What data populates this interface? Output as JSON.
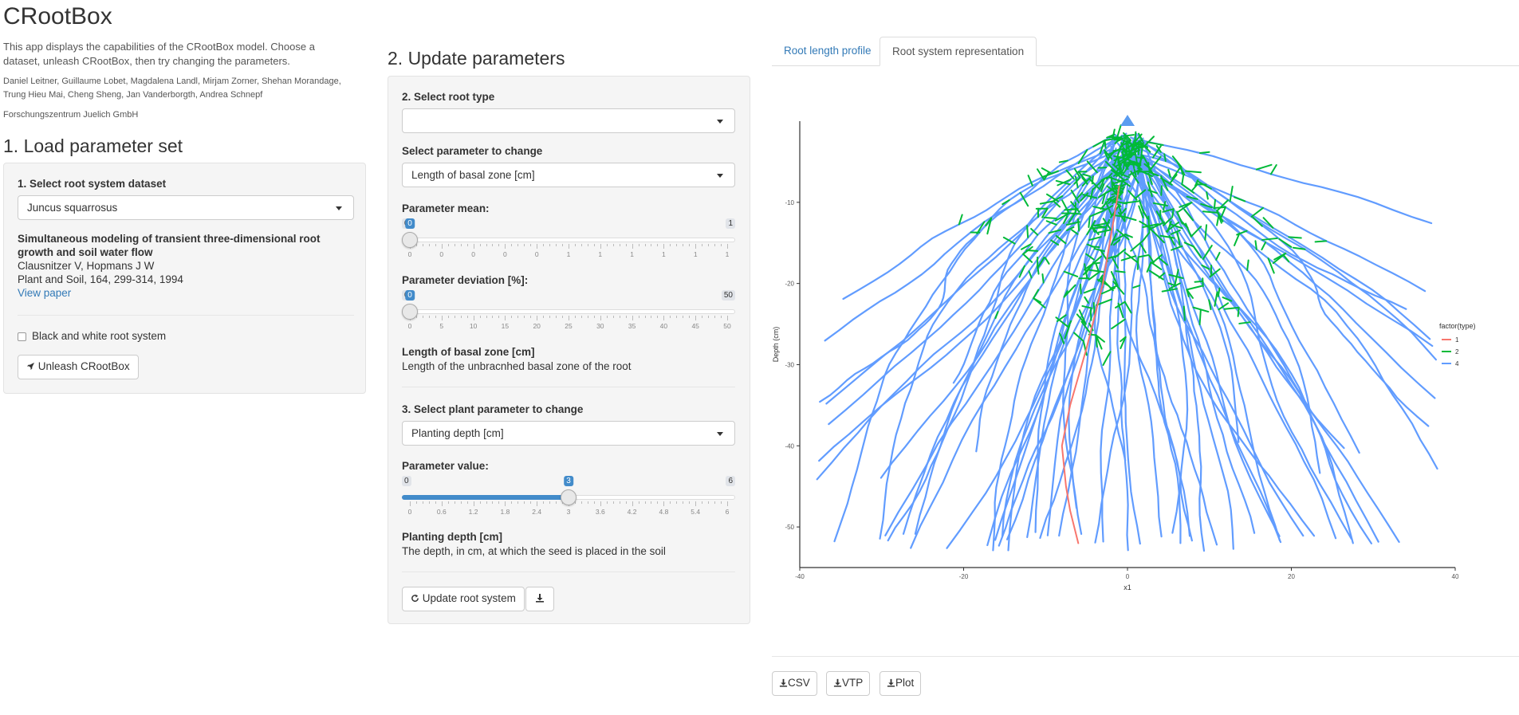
{
  "app": {
    "title": "CRootBox",
    "intro": "This app displays the capabilities of the CRootBox model. Choose a dataset, unleash CRootBox, then try changing the parameters.",
    "authors": "Daniel Leitner, Guillaume Lobet, Magdalena Landl, Mirjam Zorner, Shehan Morandage, Trung Hieu Mai, Cheng Sheng, Jan Vanderborgth, Andrea Schnepf",
    "institution": "Forschungszentrum Juelich GmbH"
  },
  "section1": {
    "title": "1. Load parameter set",
    "dataset_label": "1. Select root system dataset",
    "dataset_value": "Juncus squarrosus",
    "paper_title": "Simultaneous modeling of transient three-dimensional root growth and soil water flow",
    "paper_authors": "Clausnitzer V, Hopmans J W",
    "paper_journal": "Plant and Soil, 164, 299-314, 1994",
    "paper_link": "View paper",
    "bw_label": "Black and white root system",
    "unleash_label": "Unleash CRootBox",
    "rocket_icon": "rocket-icon"
  },
  "section2": {
    "title": "2. Update parameters",
    "root_type_label": "2. Select root type",
    "root_type_value": "",
    "param_label": "Select parameter to change",
    "param_value": "Length of basal zone [cm]",
    "mean_slider": {
      "label": "Parameter mean:",
      "min": "0",
      "max": "1",
      "value": "0",
      "ticks": [
        "0",
        "0",
        "0",
        "0",
        "0",
        "1",
        "1",
        "1",
        "1",
        "1",
        "1"
      ],
      "fraction": 0
    },
    "dev_slider": {
      "label": "Parameter deviation [%]:",
      "min": "0",
      "max": "50",
      "value": "0",
      "ticks": [
        "0",
        "5",
        "10",
        "15",
        "20",
        "25",
        "30",
        "35",
        "40",
        "45",
        "50"
      ],
      "fraction": 0
    },
    "param_desc_title": "Length of basal zone [cm]",
    "param_desc": "Length of the unbracnhed basal zone of the root",
    "plant_param_label": "3. Select plant parameter to change",
    "plant_param_value": "Planting depth [cm]",
    "value_slider": {
      "label": "Parameter value:",
      "min": "0",
      "max": "6",
      "value": "3",
      "ticks": [
        "0",
        "0.6",
        "1.2",
        "1.8",
        "2.4",
        "3",
        "3.6",
        "4.2",
        "4.8",
        "5.4",
        "6"
      ],
      "fraction": 0.5
    },
    "plant_desc_title": "Planting depth [cm]",
    "plant_desc": "The depth, in cm, at which the seed is placed in the soil",
    "update_label": "Update root system",
    "refresh_icon": "refresh-icon",
    "download_icon": "download-icon"
  },
  "tabs": [
    {
      "label": "Root length profile",
      "active": false
    },
    {
      "label": "Root system representation",
      "active": true
    }
  ],
  "downloads": [
    "CSV",
    "VTP",
    "Plot"
  ],
  "chart_data": {
    "type": "line",
    "title": "",
    "xlabel": "x1",
    "ylabel": "Depth (cm)",
    "xlim": [
      -40,
      40
    ],
    "ylim": [
      -55,
      0
    ],
    "x_ticks": [
      -40,
      -20,
      0,
      20,
      40
    ],
    "y_ticks": [
      -10,
      -20,
      -30,
      -40,
      -50
    ],
    "grid": false,
    "legend": {
      "title": "factor(type)",
      "placement": "right"
    },
    "series": [
      {
        "name": "1",
        "color": "#f8766d",
        "points": [
          [
            -1,
            -8
          ],
          [
            -3,
            -20
          ],
          [
            -5,
            -28
          ],
          [
            -7,
            -35
          ],
          [
            -8,
            -40
          ],
          [
            -7.5,
            -45
          ],
          [
            -7,
            -48
          ],
          [
            -6,
            -52
          ]
        ]
      },
      {
        "name": "2",
        "color": "#00ba38",
        "points": []
      },
      {
        "name": "4",
        "color": "#619cff",
        "points": []
      }
    ]
  }
}
